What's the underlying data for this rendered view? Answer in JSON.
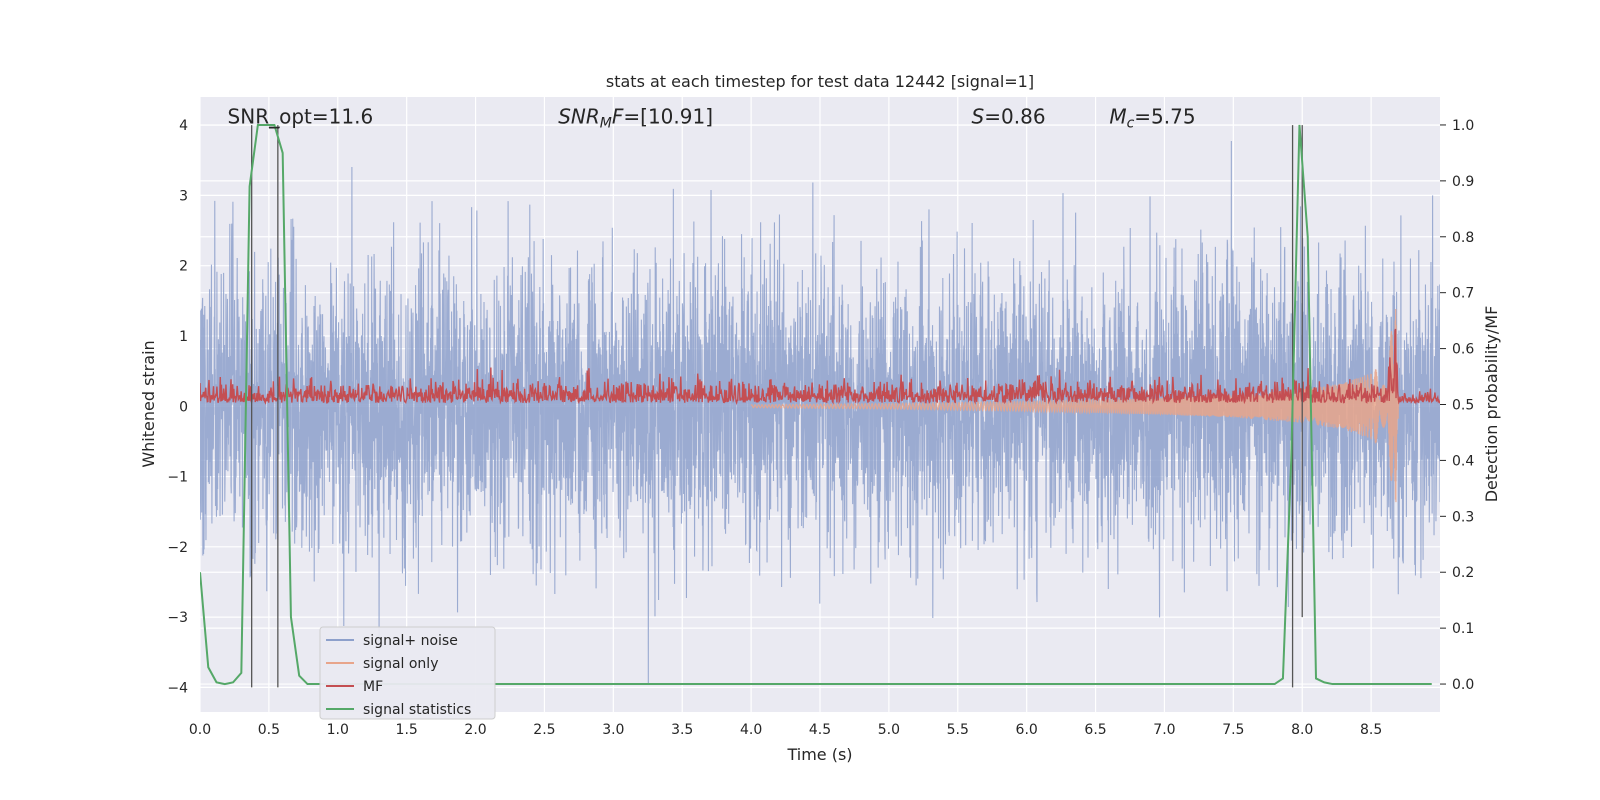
{
  "chart_data": {
    "type": "line",
    "title": "stats at each timestep for test data 12442 [signal=1]",
    "xlabel": "Time (s)",
    "ylabel": "Whitened strain",
    "ylabel_right": "Detection probability/MF",
    "xlim": [
      0.0,
      9.0
    ],
    "ylim": [
      -4.35,
      4.4
    ],
    "ylim_right": [
      -0.05,
      1.05
    ],
    "x_ticks": [
      0.0,
      0.5,
      1.0,
      1.5,
      2.0,
      2.5,
      3.0,
      3.5,
      4.0,
      4.5,
      5.0,
      5.5,
      6.0,
      6.5,
      7.0,
      7.5,
      8.0,
      8.5
    ],
    "x_tick_labels": [
      "0.0",
      "0.5",
      "1.0",
      "1.5",
      "2.0",
      "2.5",
      "3.0",
      "3.5",
      "4.0",
      "4.5",
      "5.0",
      "5.5",
      "6.0",
      "6.5",
      "7.0",
      "7.5",
      "8.0",
      "8.5"
    ],
    "y_ticks": [
      -4,
      -3,
      -2,
      -1,
      0,
      1,
      2,
      3,
      4
    ],
    "y_tick_labels": [
      "−4",
      "−3",
      "−2",
      "−1",
      "0",
      "1",
      "2",
      "3",
      "4"
    ],
    "y_ticks_right": [
      0.0,
      0.1,
      0.2,
      0.3,
      0.4,
      0.5,
      0.6,
      0.7,
      0.8,
      0.9,
      1.0
    ],
    "y_tick_labels_right": [
      "0.0",
      "0.1",
      "0.2",
      "0.3",
      "0.4",
      "0.5",
      "0.6",
      "0.7",
      "0.8",
      "0.9",
      "1.0"
    ],
    "grid": true,
    "legend_position": "lower-left",
    "annotations": [
      {
        "text": "SNR_opt=11.6",
        "x": 0.2,
        "y": 4.05
      },
      {
        "text": "SNR_MF=[10.91]",
        "x": 2.6,
        "y": 4.05,
        "rich": [
          {
            "t": "SNR",
            "it": true
          },
          {
            "t": "M",
            "it": true,
            "sub": true
          },
          {
            "t": "F",
            "it": true
          },
          {
            "t": "=[10.91]"
          }
        ]
      },
      {
        "text": "S=0.86",
        "x": 5.6,
        "y": 4.05,
        "rich": [
          {
            "t": "S",
            "it": true
          },
          {
            "t": "=0.86"
          }
        ]
      },
      {
        "text": "M_c=5.75",
        "x": 6.6,
        "y": 4.05,
        "rich": [
          {
            "t": "M",
            "it": true
          },
          {
            "t": "c",
            "it": true,
            "sub": true
          },
          {
            "t": "=5.75"
          }
        ]
      }
    ],
    "vlines": [
      {
        "x": 0.375,
        "y0": -4.0,
        "y1": 4.0
      },
      {
        "x": 0.565,
        "y0": -4.0,
        "y1": 4.0
      },
      {
        "x": 7.93,
        "y0": -4.0,
        "y1": 4.0
      },
      {
        "x": 8.0,
        "y0": -3.0,
        "y1": 4.0
      }
    ],
    "series": [
      {
        "name": "signal+ noise",
        "color": "#8da0cb",
        "kind": "noise",
        "envelope_std": 1.0,
        "y_range": [
          -4.0,
          4.0
        ]
      },
      {
        "name": "signal only",
        "color": "#e8a58b",
        "kind": "chirp",
        "x": [
          4.0,
          5.0,
          6.0,
          7.0,
          7.5,
          8.0,
          8.3,
          8.5,
          8.6,
          8.65,
          8.68,
          8.7
        ],
        "amplitude": [
          0.02,
          0.04,
          0.07,
          0.12,
          0.16,
          0.24,
          0.33,
          0.47,
          0.65,
          1.1,
          1.4,
          0.0
        ]
      },
      {
        "name": "MF",
        "color": "#c44e52",
        "kind": "mf",
        "baseline_right": 0.5,
        "x": [
          0.0,
          6.2,
          6.25,
          6.3,
          8.6,
          8.65,
          8.68,
          8.7,
          9.0
        ],
        "peak_right": [
          0.54,
          0.54,
          0.58,
          0.54,
          0.54,
          0.62,
          0.67,
          0.52,
          0.53
        ]
      },
      {
        "name": "signal statistics",
        "color": "#55a868",
        "axis": "right",
        "x": [
          0.0,
          0.06,
          0.12,
          0.18,
          0.24,
          0.3,
          0.36,
          0.42,
          0.48,
          0.54,
          0.6,
          0.66,
          0.72,
          0.78,
          0.84,
          7.74,
          7.8,
          7.86,
          7.92,
          7.98,
          8.04,
          8.1,
          8.16,
          8.22,
          8.28,
          8.94
        ],
        "y": [
          0.2,
          0.03,
          0.003,
          0.0,
          0.003,
          0.02,
          0.89,
          1.0,
          1.0,
          1.0,
          0.95,
          0.12,
          0.015,
          0.0,
          0.0,
          0.0,
          0.0,
          0.01,
          0.4,
          1.0,
          0.8,
          0.01,
          0.003,
          0.0,
          0.0,
          0.0
        ]
      }
    ]
  }
}
